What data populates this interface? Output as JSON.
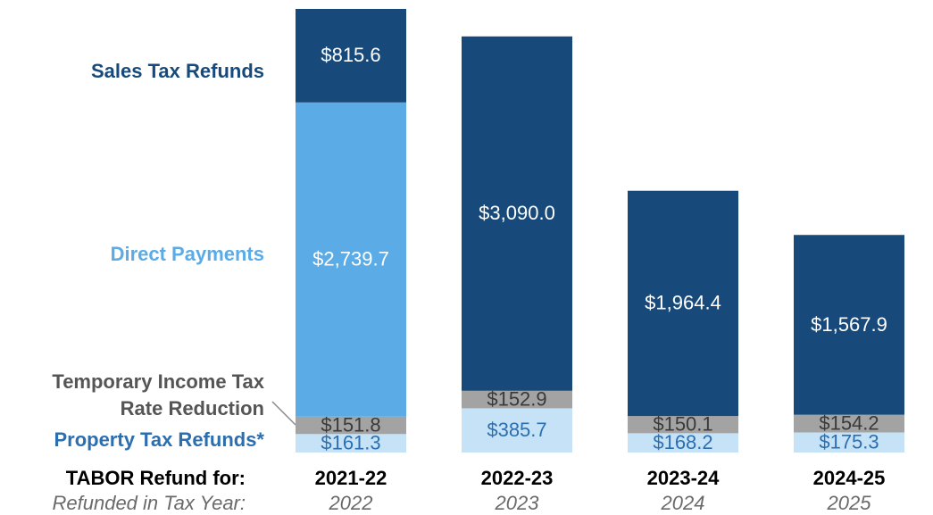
{
  "chart_data": {
    "type": "stacked_bar",
    "categories": [
      "2021-22",
      "2022-23",
      "2023-24",
      "2024-25"
    ],
    "tax_years": [
      "2022",
      "2023",
      "2024",
      "2025"
    ],
    "category_label": "TABOR Refund for:",
    "tax_year_label": "Refunded in Tax Year:",
    "series": [
      {
        "name": "Property Tax Refunds*",
        "color": "#c6e2f7",
        "label_color": "#2b6fb0",
        "values": [
          161.3,
          385.7,
          168.2,
          175.3
        ],
        "value_labels": [
          "$161.3",
          "$385.7",
          "$168.2",
          "$175.3"
        ]
      },
      {
        "name": "Temporary Income Tax Rate Reduction",
        "color": "#a3a3a3",
        "label_color": "#3a3a3a",
        "values": [
          151.8,
          152.9,
          150.1,
          154.2
        ],
        "value_labels": [
          "$151.8",
          "$152.9",
          "$150.1",
          "$154.2"
        ]
      },
      {
        "name": "Direct Payments",
        "color": "#5aabe6",
        "label_color": "#ffffff",
        "values": [
          2739.7,
          null,
          null,
          null
        ],
        "value_labels": [
          "$2,739.7",
          null,
          null,
          null
        ]
      },
      {
        "name": "Sales Tax Refunds",
        "color": "#174a7a",
        "label_color": "#ffffff",
        "values": [
          815.6,
          3090.0,
          1964.4,
          1567.9
        ],
        "value_labels": [
          "$815.6",
          "$3,090.0",
          "$1,964.4",
          "$1,567.9"
        ]
      }
    ]
  }
}
